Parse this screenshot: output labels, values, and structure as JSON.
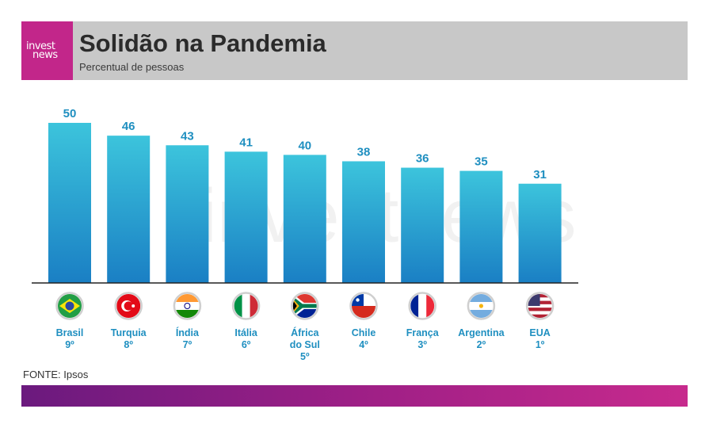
{
  "brand": {
    "logo_line1": "invest",
    "logo_line2": "news"
  },
  "header": {
    "title": "Solidão na Pandemia",
    "subtitle": "Percentual de pessoas"
  },
  "watermark": "investnews",
  "source": "FONTE: Ipsos",
  "colors": {
    "bar_top": "#3cc4dc",
    "bar_bottom": "#1a7fc4",
    "label": "#1f8fc0",
    "accent": "#c2268a"
  },
  "chart_data": {
    "type": "bar",
    "title": "Solidão na Pandemia",
    "subtitle": "Percentual de pessoas",
    "categories": [
      "Brasil",
      "Turquia",
      "Índia",
      "Itália",
      "África do Sul",
      "Chile",
      "França",
      "Argentina",
      "EUA"
    ],
    "category_lines": [
      [
        "Brasil",
        "9º"
      ],
      [
        "Turquia",
        "8º"
      ],
      [
        "Índia",
        "7º"
      ],
      [
        "Itália",
        "6º"
      ],
      [
        "África",
        "do Sul",
        "5º"
      ],
      [
        "Chile",
        "4º"
      ],
      [
        "França",
        "3º"
      ],
      [
        "Argentina",
        "2º"
      ],
      [
        "EUA",
        "1º"
      ]
    ],
    "flags": [
      "brazil-flag-icon",
      "turkey-flag-icon",
      "india-flag-icon",
      "italy-flag-icon",
      "south-africa-flag-icon",
      "chile-flag-icon",
      "france-flag-icon",
      "argentina-flag-icon",
      "usa-flag-icon"
    ],
    "values": [
      50,
      46,
      43,
      41,
      40,
      38,
      36,
      35,
      31
    ],
    "ylim": [
      0,
      50
    ],
    "grid": false,
    "legend": "none"
  }
}
